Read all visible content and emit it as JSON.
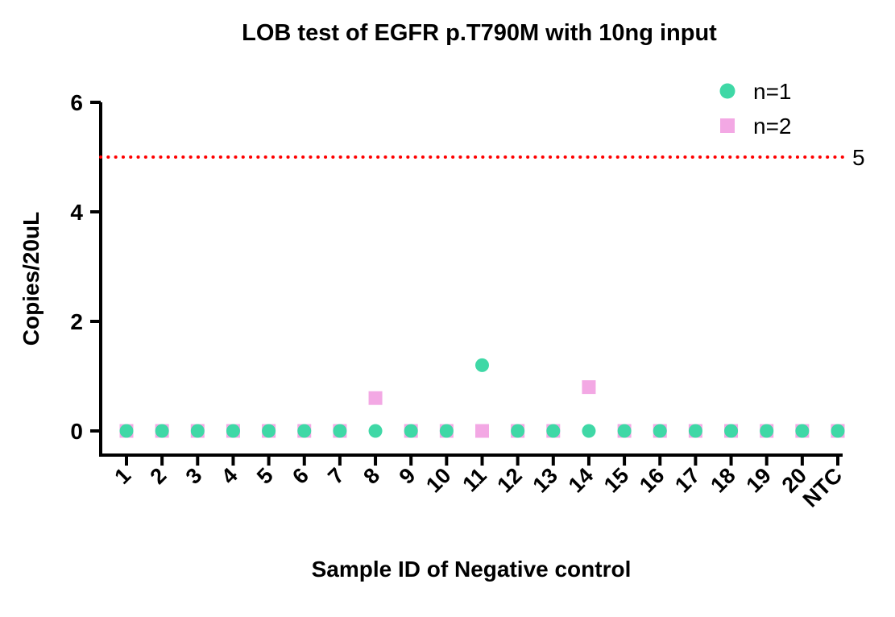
{
  "chart_data": {
    "type": "scatter",
    "title": "LOB test of EGFR p.T790M with 10ng input",
    "xlabel": "Sample ID of Negative control",
    "ylabel": "Copies/20uL",
    "categories": [
      "1",
      "2",
      "3",
      "4",
      "5",
      "6",
      "7",
      "8",
      "9",
      "10",
      "11",
      "12",
      "13",
      "14",
      "15",
      "16",
      "17",
      "18",
      "19",
      "20",
      "NTC"
    ],
    "series": [
      {
        "name": "n=1",
        "marker": "circle",
        "color": "#3fd8a6",
        "values": [
          0,
          0,
          0,
          0,
          0,
          0,
          0,
          0,
          0,
          0,
          1.2,
          0,
          0,
          0,
          0,
          0,
          0,
          0,
          0,
          0,
          0
        ]
      },
      {
        "name": "n=2",
        "marker": "square",
        "color": "#f3a8e4",
        "values": [
          0,
          0,
          0,
          0,
          0,
          0,
          0,
          0.6,
          0,
          0,
          0,
          0,
          0,
          0.8,
          0,
          0,
          0,
          0,
          0,
          0,
          0
        ]
      }
    ],
    "threshold": {
      "value": 5,
      "label": "5",
      "color": "#ff0000",
      "style": "dotted"
    },
    "ylim": [
      0,
      6
    ],
    "yticks": [
      0,
      2,
      4,
      6
    ],
    "grid": false,
    "legend_position": "top-right",
    "axis_color": "#000000"
  }
}
